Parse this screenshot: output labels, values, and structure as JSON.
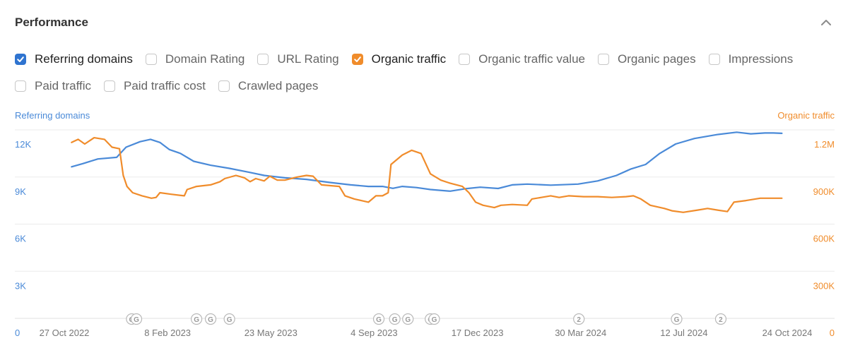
{
  "header": {
    "title": "Performance"
  },
  "options": [
    {
      "label": "Referring domains",
      "checked": true,
      "color": "#2f74d0"
    },
    {
      "label": "Domain Rating",
      "checked": false
    },
    {
      "label": "URL Rating",
      "checked": false
    },
    {
      "label": "Organic traffic",
      "checked": true,
      "color": "#f08c2b"
    },
    {
      "label": "Organic traffic value",
      "checked": false
    },
    {
      "label": "Organic pages",
      "checked": false
    },
    {
      "label": "Impressions",
      "checked": false
    },
    {
      "label": "Paid traffic",
      "checked": false
    },
    {
      "label": "Paid traffic cost",
      "checked": false
    },
    {
      "label": "Crawled pages",
      "checked": false
    }
  ],
  "chart_data": {
    "type": "line",
    "x_ticks": [
      "27 Oct 2022",
      "8 Feb 2023",
      "23 May 2023",
      "4 Sep 2023",
      "17 Dec 2023",
      "30 Mar 2024",
      "12 Jul 2024",
      "24 Oct 2024"
    ],
    "x_range": [
      "2022-09-25",
      "2024-11-10"
    ],
    "y_left": {
      "label": "Referring domains",
      "ticks": [
        "0",
        "3K",
        "6K",
        "9K",
        "12K"
      ],
      "range": [
        0,
        12000
      ],
      "color": "#4a8ad8"
    },
    "y_right": {
      "label": "Organic traffic",
      "ticks": [
        "0",
        "300K",
        "600K",
        "900K",
        "1.2M"
      ],
      "range": [
        0,
        1200000
      ],
      "color": "#f08c2b"
    },
    "grid": true,
    "series": [
      {
        "name": "Referring domains",
        "axis": "left",
        "color": "#4a8ad8",
        "points": [
          [
            "2022-10-08",
            9650
          ],
          [
            "2022-10-20",
            9850
          ],
          [
            "2022-11-05",
            10150
          ],
          [
            "2022-11-25",
            10250
          ],
          [
            "2022-12-05",
            10900
          ],
          [
            "2022-12-20",
            11250
          ],
          [
            "2022-12-31",
            11400
          ],
          [
            "2023-01-10",
            11200
          ],
          [
            "2023-01-20",
            10750
          ],
          [
            "2023-02-01",
            10500
          ],
          [
            "2023-02-15",
            10000
          ],
          [
            "2023-03-05",
            9750
          ],
          [
            "2023-03-25",
            9550
          ],
          [
            "2023-04-15",
            9300
          ],
          [
            "2023-05-01",
            9100
          ],
          [
            "2023-05-23",
            8950
          ],
          [
            "2023-06-15",
            8850
          ],
          [
            "2023-07-10",
            8650
          ],
          [
            "2023-08-01",
            8500
          ],
          [
            "2023-08-20",
            8400
          ],
          [
            "2023-09-04",
            8400
          ],
          [
            "2023-09-15",
            8280
          ],
          [
            "2023-09-25",
            8400
          ],
          [
            "2023-10-10",
            8330
          ],
          [
            "2023-10-25",
            8200
          ],
          [
            "2023-11-15",
            8100
          ],
          [
            "2023-12-01",
            8250
          ],
          [
            "2023-12-17",
            8350
          ],
          [
            "2024-01-05",
            8270
          ],
          [
            "2024-01-20",
            8500
          ],
          [
            "2024-02-05",
            8550
          ],
          [
            "2024-03-01",
            8480
          ],
          [
            "2024-03-30",
            8550
          ],
          [
            "2024-04-20",
            8750
          ],
          [
            "2024-05-10",
            9100
          ],
          [
            "2024-05-25",
            9500
          ],
          [
            "2024-06-10",
            9800
          ],
          [
            "2024-06-25",
            10500
          ],
          [
            "2024-07-12",
            11100
          ],
          [
            "2024-08-01",
            11450
          ],
          [
            "2024-08-25",
            11700
          ],
          [
            "2024-09-15",
            11850
          ],
          [
            "2024-09-30",
            11750
          ],
          [
            "2024-10-15",
            11800
          ],
          [
            "2024-10-24",
            11800
          ],
          [
            "2024-11-02",
            11780
          ]
        ]
      },
      {
        "name": "Organic traffic",
        "axis": "right",
        "color": "#f08c2b",
        "points": [
          [
            "2022-10-08",
            1120000
          ],
          [
            "2022-10-15",
            1140000
          ],
          [
            "2022-10-22",
            1110000
          ],
          [
            "2022-11-01",
            1150000
          ],
          [
            "2022-11-12",
            1140000
          ],
          [
            "2022-11-20",
            1090000
          ],
          [
            "2022-11-28",
            1080000
          ],
          [
            "2022-12-02",
            910000
          ],
          [
            "2022-12-06",
            840000
          ],
          [
            "2022-12-12",
            800000
          ],
          [
            "2022-12-22",
            780000
          ],
          [
            "2023-01-01",
            765000
          ],
          [
            "2023-01-06",
            770000
          ],
          [
            "2023-01-10",
            800000
          ],
          [
            "2023-01-22",
            790000
          ],
          [
            "2023-02-05",
            780000
          ],
          [
            "2023-02-08",
            820000
          ],
          [
            "2023-02-18",
            840000
          ],
          [
            "2023-03-05",
            850000
          ],
          [
            "2023-03-15",
            870000
          ],
          [
            "2023-03-20",
            890000
          ],
          [
            "2023-04-01",
            910000
          ],
          [
            "2023-04-10",
            895000
          ],
          [
            "2023-04-16",
            870000
          ],
          [
            "2023-04-22",
            890000
          ],
          [
            "2023-05-01",
            875000
          ],
          [
            "2023-05-07",
            905000
          ],
          [
            "2023-05-15",
            880000
          ],
          [
            "2023-05-23",
            880000
          ],
          [
            "2023-06-05",
            900000
          ],
          [
            "2023-06-15",
            910000
          ],
          [
            "2023-06-22",
            905000
          ],
          [
            "2023-07-01",
            850000
          ],
          [
            "2023-07-20",
            840000
          ],
          [
            "2023-07-26",
            780000
          ],
          [
            "2023-08-05",
            760000
          ],
          [
            "2023-08-20",
            740000
          ],
          [
            "2023-08-28",
            780000
          ],
          [
            "2023-09-04",
            780000
          ],
          [
            "2023-09-10",
            800000
          ],
          [
            "2023-09-13",
            980000
          ],
          [
            "2023-09-25",
            1040000
          ],
          [
            "2023-10-05",
            1070000
          ],
          [
            "2023-10-15",
            1050000
          ],
          [
            "2023-10-25",
            920000
          ],
          [
            "2023-11-05",
            880000
          ],
          [
            "2023-11-15",
            860000
          ],
          [
            "2023-11-28",
            840000
          ],
          [
            "2023-12-05",
            800000
          ],
          [
            "2023-12-12",
            740000
          ],
          [
            "2023-12-20",
            720000
          ],
          [
            "2024-01-01",
            705000
          ],
          [
            "2024-01-08",
            720000
          ],
          [
            "2024-01-20",
            725000
          ],
          [
            "2024-02-05",
            720000
          ],
          [
            "2024-02-10",
            760000
          ],
          [
            "2024-02-20",
            770000
          ],
          [
            "2024-03-01",
            780000
          ],
          [
            "2024-03-10",
            770000
          ],
          [
            "2024-03-20",
            780000
          ],
          [
            "2024-04-05",
            775000
          ],
          [
            "2024-04-20",
            775000
          ],
          [
            "2024-05-05",
            770000
          ],
          [
            "2024-05-20",
            775000
          ],
          [
            "2024-05-28",
            780000
          ],
          [
            "2024-06-05",
            760000
          ],
          [
            "2024-06-15",
            720000
          ],
          [
            "2024-06-30",
            700000
          ],
          [
            "2024-07-08",
            685000
          ],
          [
            "2024-07-20",
            675000
          ],
          [
            "2024-08-05",
            690000
          ],
          [
            "2024-08-15",
            700000
          ],
          [
            "2024-08-25",
            690000
          ],
          [
            "2024-09-05",
            680000
          ],
          [
            "2024-09-12",
            740000
          ],
          [
            "2024-09-25",
            750000
          ],
          [
            "2024-10-10",
            765000
          ],
          [
            "2024-10-24",
            765000
          ],
          [
            "2024-11-02",
            765000
          ]
        ]
      }
    ],
    "annotations": [
      {
        "label": "G",
        "date": "2022-12-11"
      },
      {
        "label": "G",
        "date": "2022-12-16"
      },
      {
        "label": "G",
        "date": "2023-02-18"
      },
      {
        "label": "G",
        "date": "2023-03-05"
      },
      {
        "label": "G",
        "date": "2023-03-25"
      },
      {
        "label": "G",
        "date": "2023-08-31"
      },
      {
        "label": "G",
        "date": "2023-09-17"
      },
      {
        "label": "G",
        "date": "2023-10-01"
      },
      {
        "label": "G",
        "date": "2023-10-25"
      },
      {
        "label": "G",
        "date": "2023-10-29"
      },
      {
        "label": "2",
        "date": "2024-03-31"
      },
      {
        "label": "G",
        "date": "2024-07-13"
      },
      {
        "label": "2",
        "date": "2024-08-29"
      }
    ]
  }
}
